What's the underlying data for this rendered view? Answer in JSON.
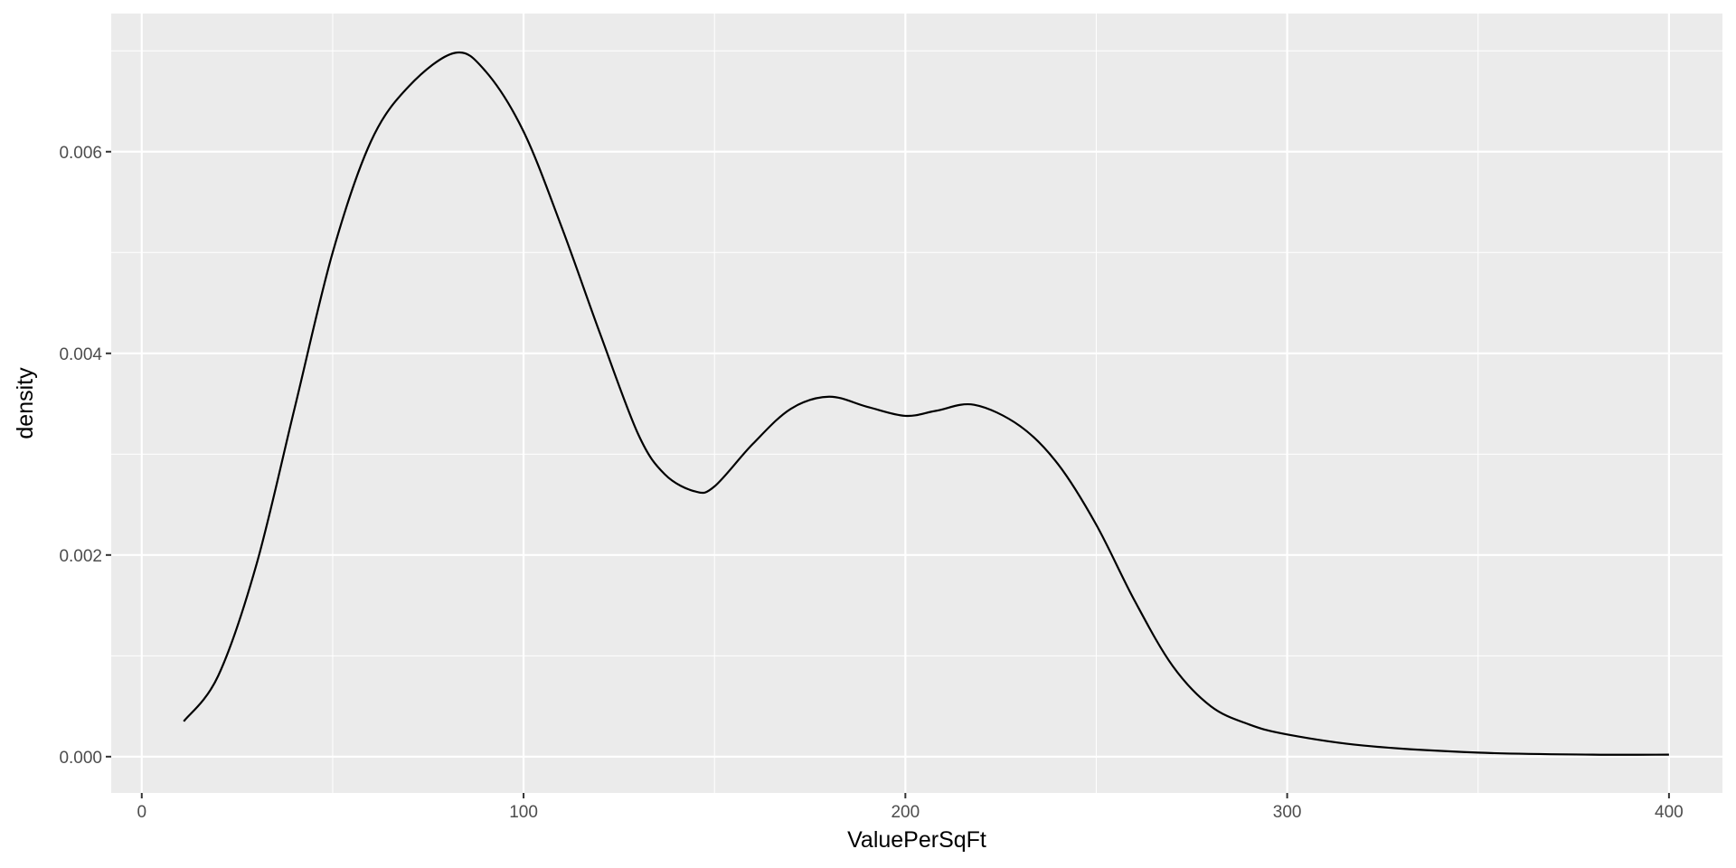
{
  "chart_data": {
    "type": "line",
    "title": "",
    "xlabel": "ValuePerSqFt",
    "ylabel": "density",
    "xlim": [
      -8,
      414
    ],
    "ylim": [
      -0.00036,
      0.00737
    ],
    "x_ticks": [
      0,
      100,
      200,
      300,
      400
    ],
    "x_tick_labels": [
      "0",
      "100",
      "200",
      "300",
      "400"
    ],
    "x_minor_ticks": [
      50,
      150,
      250,
      350
    ],
    "y_ticks": [
      0,
      0.002,
      0.004,
      0.006
    ],
    "y_tick_labels": [
      "0.000",
      "0.002",
      "0.004",
      "0.006"
    ],
    "y_minor_ticks": [
      0.001,
      0.003,
      0.005,
      0.007
    ],
    "grid": true,
    "colors": {
      "panel": "#ebebeb",
      "grid": "#ffffff",
      "line": "#000000",
      "tick_text": "#4d4d4d",
      "tick_mark": "#333333"
    },
    "series": [
      {
        "x": [
          11,
          20,
          30,
          40,
          50,
          60,
          70,
          82,
          90,
          100,
          110,
          120,
          130,
          137,
          145,
          150,
          160,
          170,
          180,
          190,
          200,
          208,
          218,
          230,
          240,
          250,
          260,
          270,
          280,
          290,
          300,
          320,
          350,
          380,
          400
        ],
        "y": [
          0.00035,
          0.0008,
          0.0019,
          0.00345,
          0.005,
          0.0061,
          0.00665,
          0.00698,
          0.0068,
          0.0062,
          0.00525,
          0.0042,
          0.0032,
          0.0028,
          0.00263,
          0.00268,
          0.0031,
          0.00345,
          0.00357,
          0.00347,
          0.00338,
          0.00343,
          0.00349,
          0.00328,
          0.0029,
          0.0023,
          0.00155,
          0.0009,
          0.0005,
          0.00032,
          0.00022,
          0.00011,
          4e-05,
          2e-05,
          2e-05
        ]
      }
    ]
  }
}
